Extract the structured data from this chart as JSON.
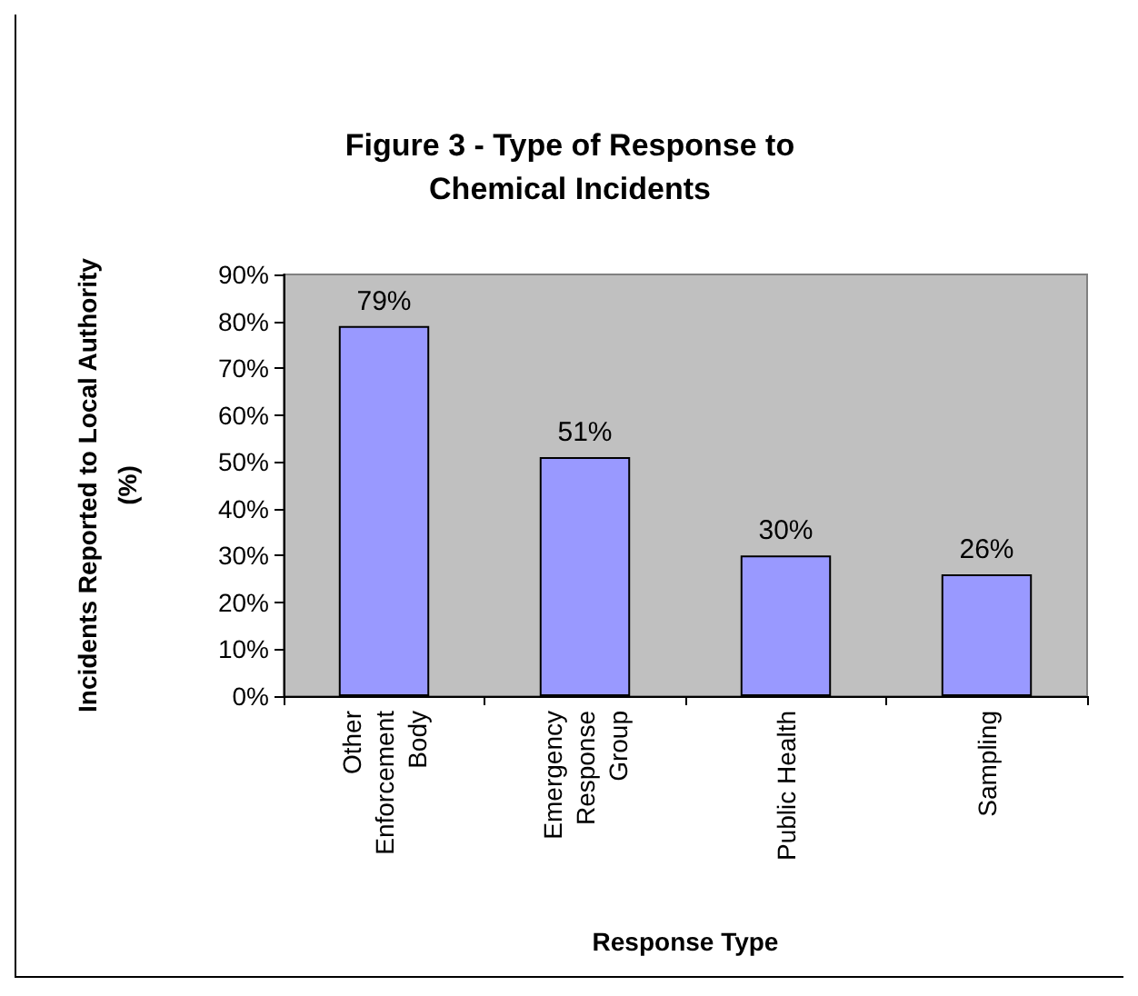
{
  "chart_data": {
    "type": "bar",
    "title": "Figure 3 - Type of Response to\nChemical Incidents",
    "xlabel": "Response Type",
    "ylabel": "Incidents Reported to Local Authority\n(%)",
    "categories": [
      "Other Enforcement Body",
      "Emergency Response Group",
      "Public Health",
      "Sampling"
    ],
    "values": [
      79,
      51,
      30,
      26
    ],
    "value_labels": [
      "79%",
      "51%",
      "30%",
      "26%"
    ],
    "color": "#9999ff",
    "ylim": [
      0,
      90
    ],
    "yticks": [
      {
        "value": 0,
        "label": "0%"
      },
      {
        "value": 10,
        "label": "10%"
      },
      {
        "value": 20,
        "label": "20%"
      },
      {
        "value": 30,
        "label": "30%"
      },
      {
        "value": 40,
        "label": "40%"
      },
      {
        "value": 50,
        "label": "50%"
      },
      {
        "value": 60,
        "label": "60%"
      },
      {
        "value": 70,
        "label": "70%"
      },
      {
        "value": 80,
        "label": "80%"
      },
      {
        "value": 90,
        "label": "90%"
      }
    ],
    "grid": false
  }
}
